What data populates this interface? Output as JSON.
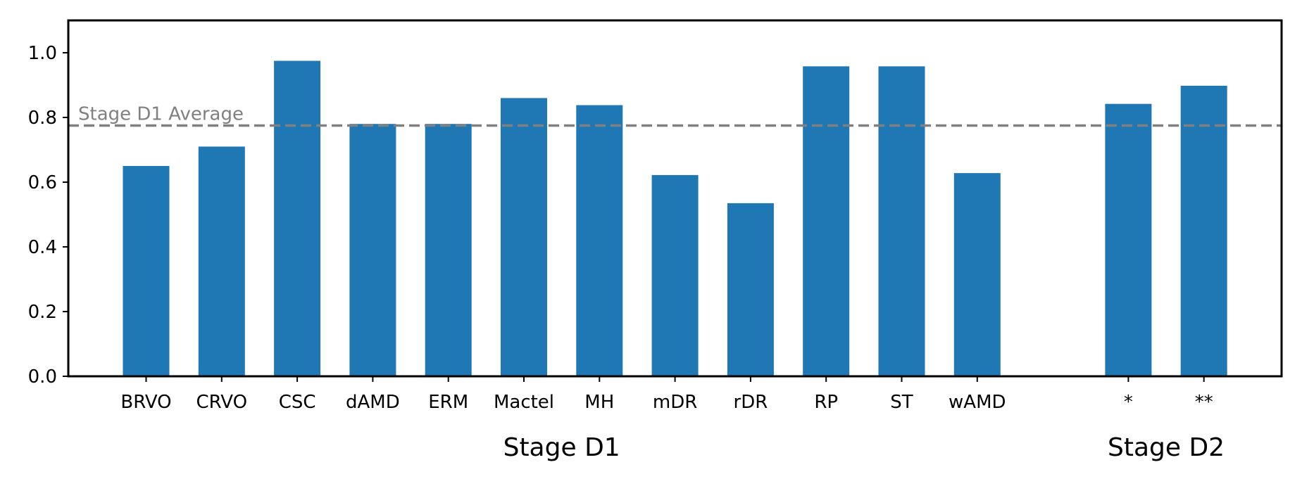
{
  "chart_data": {
    "type": "bar",
    "title": "",
    "xlabel": "",
    "ylabel": "",
    "ylim": [
      0,
      1.1
    ],
    "yticks": [
      "0.0",
      "0.2",
      "0.4",
      "0.6",
      "0.8",
      "1.0"
    ],
    "categories": [
      "BRVO",
      "CRVO",
      "CSC",
      "dAMD",
      "ERM",
      "Mactel",
      "MH",
      "mDR",
      "rDR",
      "RP",
      "ST",
      "wAMD",
      "*",
      "**"
    ],
    "values": [
      0.65,
      0.71,
      0.975,
      0.78,
      0.78,
      0.86,
      0.838,
      0.622,
      0.535,
      0.958,
      0.958,
      0.628,
      0.842,
      0.898
    ],
    "groups": [
      {
        "label": "Stage D1",
        "categories": [
          "BRVO",
          "CRVO",
          "CSC",
          "dAMD",
          "ERM",
          "Mactel",
          "MH",
          "mDR",
          "rDR",
          "RP",
          "ST",
          "wAMD"
        ]
      },
      {
        "label": "Stage D2",
        "categories": [
          "*",
          "**"
        ]
      }
    ],
    "reference_line": {
      "label": "Stage D1 Average",
      "value": 0.775,
      "style": "dashed",
      "color": "#808080"
    },
    "bar_color": "#1f77b4",
    "grid": false,
    "legend": "none"
  }
}
